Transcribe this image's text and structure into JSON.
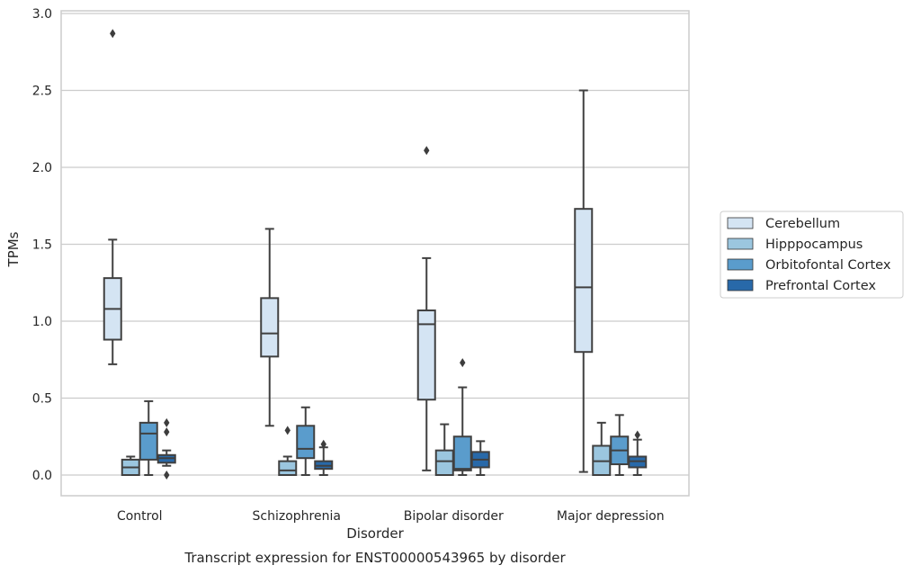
{
  "chart_data": {
    "type": "box",
    "title": "",
    "caption": "Transcript expression for ENST00000543965 by disorder",
    "xlabel": "Disorder",
    "ylabel": "TPMs",
    "ylim": [
      -0.13,
      3.02
    ],
    "yticks": [
      "0.0",
      "0.5",
      "1.0",
      "1.5",
      "2.0",
      "2.5",
      "3.0"
    ],
    "grid": true,
    "legend_position": "right",
    "categories": [
      "Control",
      "Schizophrenia",
      "Bipolar disorder",
      "Major depression"
    ],
    "series": [
      {
        "name": "Cerebellum",
        "color": "#d4e4f3",
        "boxes": [
          {
            "whislo": 0.72,
            "q1": 0.88,
            "med": 1.08,
            "q3": 1.28,
            "whishi": 1.53,
            "fliers": [
              2.87
            ]
          },
          {
            "whislo": 0.32,
            "q1": 0.77,
            "med": 0.92,
            "q3": 1.15,
            "whishi": 1.6,
            "fliers": []
          },
          {
            "whislo": 0.03,
            "q1": 0.49,
            "med": 0.98,
            "q3": 1.07,
            "whishi": 1.41,
            "fliers": [
              2.11
            ]
          },
          {
            "whislo": 0.02,
            "q1": 0.8,
            "med": 1.22,
            "q3": 1.73,
            "whishi": 2.5,
            "fliers": []
          }
        ]
      },
      {
        "name": "Hipppocampus",
        "color": "#9bc6df",
        "boxes": [
          {
            "whislo": 0.0,
            "q1": 0.0,
            "med": 0.05,
            "q3": 0.1,
            "whishi": 0.12,
            "fliers": []
          },
          {
            "whislo": 0.0,
            "q1": 0.0,
            "med": 0.03,
            "q3": 0.09,
            "whishi": 0.12,
            "fliers": [
              0.29
            ]
          },
          {
            "whislo": 0.0,
            "q1": 0.0,
            "med": 0.09,
            "q3": 0.16,
            "whishi": 0.33,
            "fliers": []
          },
          {
            "whislo": 0.0,
            "q1": 0.0,
            "med": 0.09,
            "q3": 0.19,
            "whishi": 0.34,
            "fliers": []
          }
        ]
      },
      {
        "name": "Orbitofontal Cortex",
        "color": "#5a9ccc",
        "boxes": [
          {
            "whislo": 0.0,
            "q1": 0.1,
            "med": 0.27,
            "q3": 0.34,
            "whishi": 0.48,
            "fliers": []
          },
          {
            "whislo": 0.0,
            "q1": 0.11,
            "med": 0.17,
            "q3": 0.32,
            "whishi": 0.44,
            "fliers": []
          },
          {
            "whislo": 0.0,
            "q1": 0.03,
            "med": 0.04,
            "q3": 0.25,
            "whishi": 0.57,
            "fliers": [
              0.73
            ]
          },
          {
            "whislo": 0.0,
            "q1": 0.07,
            "med": 0.16,
            "q3": 0.25,
            "whishi": 0.39,
            "fliers": []
          }
        ]
      },
      {
        "name": "Prefrontal Cortex",
        "color": "#2869a9",
        "boxes": [
          {
            "whislo": 0.06,
            "q1": 0.08,
            "med": 0.11,
            "q3": 0.13,
            "whishi": 0.16,
            "fliers": [
              0.34,
              0.28,
              0.0
            ]
          },
          {
            "whislo": 0.0,
            "q1": 0.04,
            "med": 0.06,
            "q3": 0.09,
            "whishi": 0.18,
            "fliers": [
              0.2
            ]
          },
          {
            "whislo": 0.0,
            "q1": 0.05,
            "med": 0.1,
            "q3": 0.15,
            "whishi": 0.22,
            "fliers": []
          },
          {
            "whislo": 0.0,
            "q1": 0.05,
            "med": 0.09,
            "q3": 0.12,
            "whishi": 0.23,
            "fliers": [
              0.26
            ]
          }
        ]
      }
    ]
  }
}
